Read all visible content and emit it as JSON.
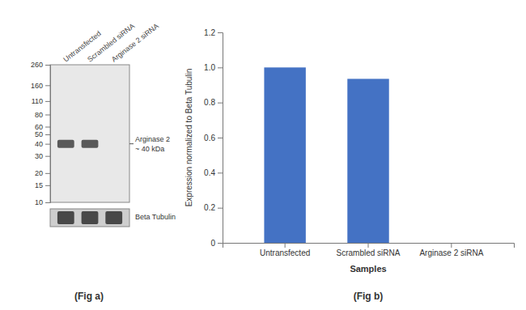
{
  "chart_data": [
    {
      "type": "blot",
      "title": "(Fig a)",
      "categories": [
        "Untransfected",
        "Scrambled siRNA",
        "Arginase 2 siRNA"
      ],
      "log": "y",
      "ylim": [
        10,
        260
      ],
      "yticks": [
        260,
        160,
        110,
        80,
        60,
        50,
        40,
        30,
        20,
        15,
        10
      ],
      "annotations": [
        "Arginase 2",
        "~ 40 kDa",
        "Beta Tubulin"
      ]
    },
    {
      "type": "bar",
      "title": "(Fig b)",
      "categories": [
        "Untransfected",
        "Scrambled siRNA",
        "Arginase 2 siRNA"
      ],
      "values": [
        1.0,
        0.935,
        0.0
      ],
      "color": "#4472c4",
      "xlabel": "Samples",
      "ylabel": "Expression normalized to Beta Tubulin",
      "ylim": [
        0,
        1.2
      ],
      "yticks": [
        0,
        0.2,
        0.4,
        0.6,
        0.8,
        {
          "value": 1.0,
          "label": "1.0"
        },
        1.2
      ]
    }
  ]
}
